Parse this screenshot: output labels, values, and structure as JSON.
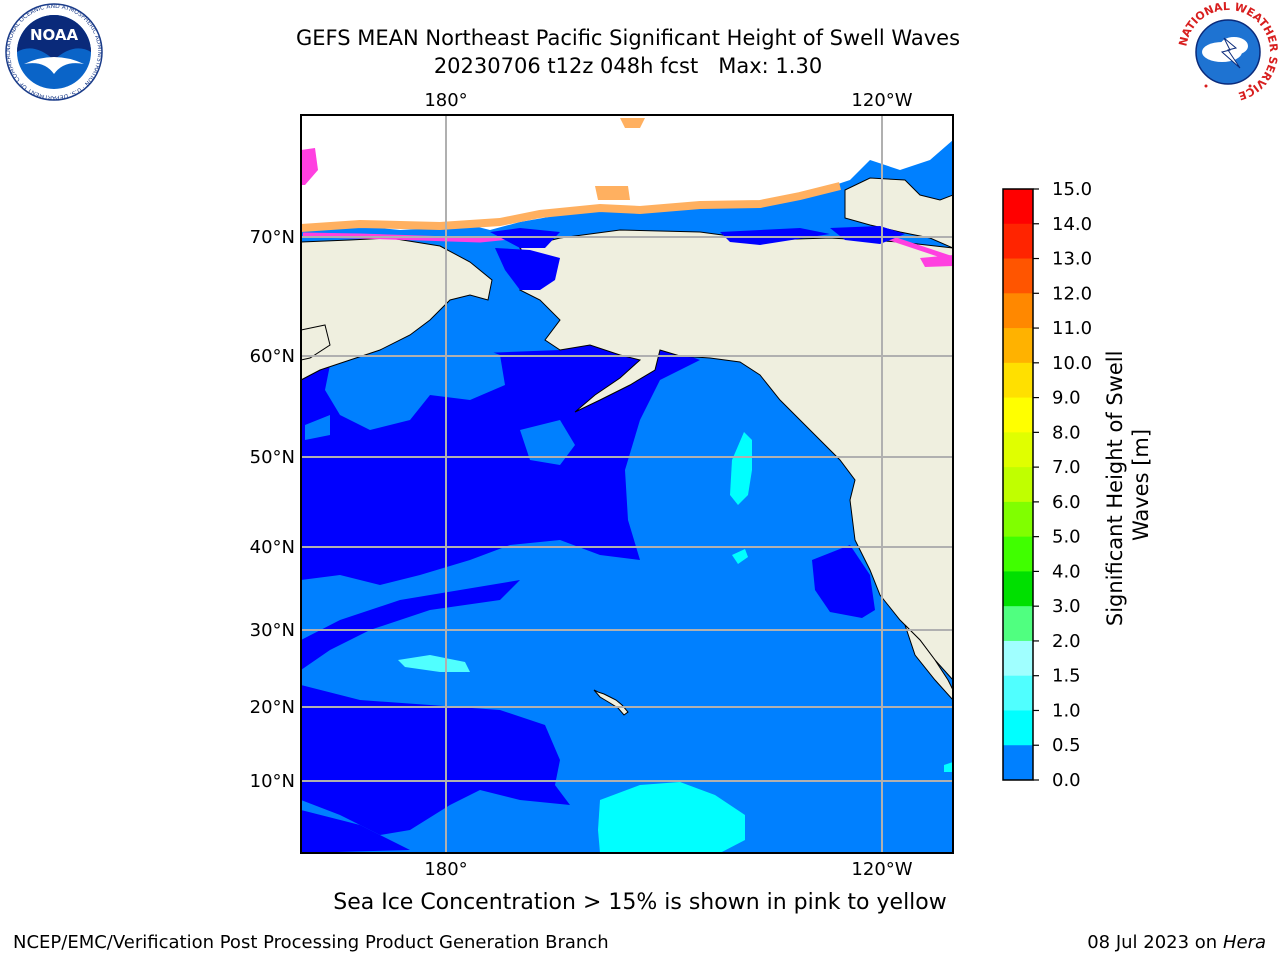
{
  "header": {
    "title": "GEFS MEAN Northeast Pacific Significant Height of Swell Waves",
    "run": "20230706 t12z 048h fcst",
    "max_label": "Max: 1.30"
  },
  "logos": {
    "left": "NOAA",
    "right_text": "NATIONAL WEATHER SERVICE",
    "left_ring_text": "NATIONAL OCEANIC AND ATMOSPHERIC ADMINISTRATION · U.S. DEPARTMENT OF COMMERCE"
  },
  "map": {
    "lon_labels": [
      "180°",
      "120°W"
    ],
    "lat_labels": [
      "70°N",
      "60°N",
      "50°N",
      "40°N",
      "30°N",
      "20°N",
      "10°N"
    ],
    "colors": {
      "land": "#efefdf",
      "ocean_dark": "#0000ff",
      "ocean_mid": "#0080ff",
      "ocean_light": "#00ffff",
      "ice_pink": "#ff40e0",
      "ice_orange": "#ffb060",
      "grid": "#b0b0b0"
    }
  },
  "colorbar": {
    "label": "Significant Height of Swell Waves [m]",
    "label_line1": "Significant Height of Swell",
    "label_line2": "Waves [m]",
    "ticks": [
      "15.0",
      "14.0",
      "13.0",
      "12.0",
      "11.0",
      "10.0",
      "9.0",
      "8.0",
      "7.0",
      "6.0",
      "5.0",
      "4.0",
      "3.0",
      "2.0",
      "1.5",
      "1.0",
      "0.5",
      "0.0"
    ],
    "colors": [
      "#ff0000",
      "#ff2400",
      "#ff5500",
      "#ff8800",
      "#ffb200",
      "#ffe000",
      "#ffff00",
      "#e0ff00",
      "#c0ff00",
      "#80ff00",
      "#40ff00",
      "#00e000",
      "#50ff80",
      "#a0ffff",
      "#50ffff",
      "#00ffff",
      "#0080ff",
      "#0000ff"
    ]
  },
  "caption": "Sea Ice Concentration > 15% is shown in pink to yellow",
  "footer": {
    "left": "NCEP/EMC/Verification Post Processing Product Generation Branch",
    "right_date": "08 Jul 2023 on",
    "right_host": "Hera"
  }
}
